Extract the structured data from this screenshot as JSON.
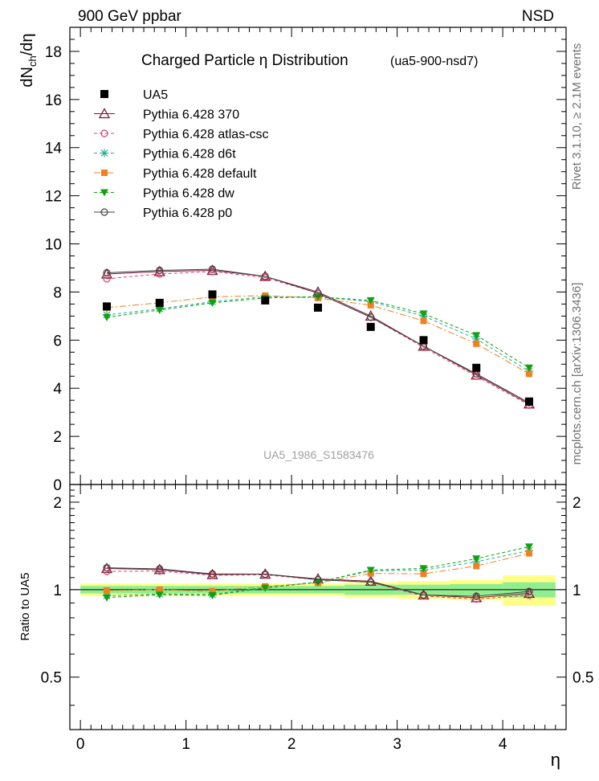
{
  "header": {
    "left": "900 GeV ppbar",
    "right": "NSD"
  },
  "side": {
    "top": "Rivet 3.1.10, ≥ 2.1M events",
    "bottom": "mcplots.cern.ch [arXiv:1306.3436]"
  },
  "chart_data": {
    "type": "line",
    "title": "Charged Particle  η Distribution",
    "subtitle": "(ua5-900-nsd7)",
    "watermark": "UA5_1986_S1583476",
    "xlabel": "η",
    "ylabel": "dN_ch/dη",
    "ratio_ylabel": "Ratio to UA5",
    "xlim": [
      -0.1,
      4.6
    ],
    "ylim": [
      0,
      19
    ],
    "ratio_ylim": [
      0.33,
      2.3
    ],
    "x_ticks": [
      0,
      1,
      2,
      3,
      4
    ],
    "y_ticks": [
      0,
      2,
      4,
      6,
      8,
      10,
      12,
      14,
      16,
      18
    ],
    "ratio_ticks": [
      0.5,
      1,
      2
    ],
    "x": [
      0.25,
      0.75,
      1.25,
      1.75,
      2.25,
      2.75,
      3.25,
      3.75,
      4.25
    ],
    "data": {
      "name": "UA5",
      "values": [
        7.4,
        7.55,
        7.9,
        7.65,
        7.35,
        6.55,
        6.0,
        4.85,
        3.45
      ],
      "band_inner": [
        0.03,
        0.03,
        0.03,
        0.03,
        0.03,
        0.04,
        0.04,
        0.045,
        0.06
      ],
      "band_outer": [
        0.05,
        0.05,
        0.05,
        0.05,
        0.05,
        0.06,
        0.07,
        0.08,
        0.12
      ]
    },
    "series": [
      {
        "name": "Pythia 6.428 370",
        "color": "#7a1a3a",
        "marker": "triangle-open",
        "dash": "",
        "values": [
          8.75,
          8.85,
          8.9,
          8.65,
          8.0,
          7.0,
          5.75,
          4.55,
          3.35
        ]
      },
      {
        "name": "Pythia 6.428 atlas-csc",
        "color": "#e0406a",
        "marker": "circle-open",
        "dash": "4,3",
        "values": [
          8.55,
          8.75,
          8.85,
          8.6,
          7.95,
          6.95,
          5.7,
          4.5,
          3.3
        ]
      },
      {
        "name": "Pythia 6.428 d6t",
        "color": "#20b090",
        "marker": "star",
        "dash": "4,3",
        "values": [
          7.05,
          7.3,
          7.6,
          7.8,
          7.8,
          7.6,
          7.0,
          6.05,
          4.7
        ]
      },
      {
        "name": "Pythia 6.428 default",
        "color": "#f08020",
        "marker": "square",
        "dash": "8,3,2,3",
        "values": [
          7.35,
          7.55,
          7.8,
          7.85,
          7.75,
          7.45,
          6.8,
          5.85,
          4.6
        ]
      },
      {
        "name": "Pythia 6.428 dw",
        "color": "#10a010",
        "marker": "triangle-down",
        "dash": "4,3",
        "values": [
          6.95,
          7.25,
          7.55,
          7.75,
          7.8,
          7.65,
          7.1,
          6.2,
          4.85
        ]
      },
      {
        "name": "Pythia 6.428 p0",
        "color": "#404040",
        "marker": "circle-open",
        "dash": "",
        "values": [
          8.8,
          8.9,
          8.95,
          8.65,
          7.95,
          6.95,
          5.75,
          4.6,
          3.4
        ]
      }
    ]
  }
}
